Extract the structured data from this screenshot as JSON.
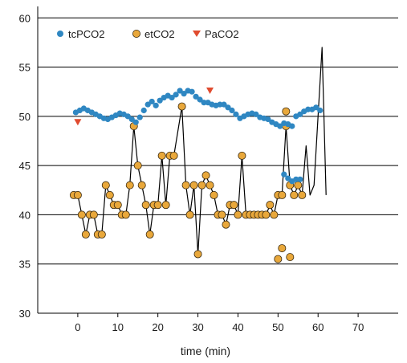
{
  "chart_data": {
    "type": "scatter",
    "xlabel": "time (min)",
    "ylabel": "",
    "xlim": [
      -10,
      80
    ],
    "ylim": [
      30,
      61
    ],
    "x_ticks": [
      0,
      10,
      20,
      30,
      40,
      50,
      60,
      70
    ],
    "y_ticks": [
      30,
      35,
      40,
      45,
      50,
      55,
      60
    ],
    "grid": "horizontal",
    "legend_position": "top-left",
    "colors": {
      "tcPCO2": "#2f87c2",
      "etCO2": "#e9a83b",
      "PaCO2": "#e04b2f",
      "grid": "#000000",
      "line": "#000000"
    },
    "series": [
      {
        "name": "tcPCO2",
        "marker": "circle-filled",
        "points": [
          [
            -0.5,
            50.4
          ],
          [
            0.5,
            50.6
          ],
          [
            1.5,
            50.8
          ],
          [
            2.5,
            50.6
          ],
          [
            3.5,
            50.4
          ],
          [
            4.5,
            50.2
          ],
          [
            5.5,
            50.0
          ],
          [
            6.5,
            49.8
          ],
          [
            7.5,
            49.7
          ],
          [
            8.5,
            49.9
          ],
          [
            9.5,
            50.1
          ],
          [
            10.5,
            50.3
          ],
          [
            11.5,
            50.2
          ],
          [
            12.5,
            50.0
          ],
          [
            13.5,
            49.7
          ],
          [
            14.5,
            49.4
          ],
          [
            15.5,
            49.9
          ],
          [
            16.5,
            50.6
          ],
          [
            17.5,
            51.2
          ],
          [
            18.5,
            51.5
          ],
          [
            19.5,
            51.1
          ],
          [
            20.5,
            51.6
          ],
          [
            21.5,
            51.9
          ],
          [
            22.5,
            52.1
          ],
          [
            23.5,
            51.9
          ],
          [
            24.5,
            52.2
          ],
          [
            25.5,
            52.6
          ],
          [
            26.5,
            52.3
          ],
          [
            27.5,
            52.6
          ],
          [
            28.5,
            52.5
          ],
          [
            29.5,
            52.0
          ],
          [
            30.5,
            51.7
          ],
          [
            31.5,
            51.4
          ],
          [
            32.5,
            51.4
          ],
          [
            33.5,
            51.2
          ],
          [
            34.5,
            51.1
          ],
          [
            35.5,
            51.2
          ],
          [
            36.5,
            51.2
          ],
          [
            37.5,
            50.9
          ],
          [
            38.5,
            50.6
          ],
          [
            39.5,
            50.2
          ],
          [
            40.5,
            49.8
          ],
          [
            41.5,
            50.0
          ],
          [
            42.5,
            50.2
          ],
          [
            43.5,
            50.3
          ],
          [
            44.5,
            50.2
          ],
          [
            45.5,
            49.9
          ],
          [
            46.5,
            49.8
          ],
          [
            47.5,
            49.7
          ],
          [
            48.5,
            49.4
          ],
          [
            49.5,
            49.2
          ],
          [
            50.5,
            49.0
          ],
          [
            51.5,
            49.3
          ],
          [
            52.5,
            49.2
          ],
          [
            53.5,
            49.0
          ],
          [
            54.5,
            50.0
          ],
          [
            55.5,
            50.2
          ],
          [
            56.5,
            50.5
          ],
          [
            57.5,
            50.7
          ],
          [
            58.5,
            50.7
          ],
          [
            59.5,
            50.9
          ],
          [
            60.5,
            50.6
          ],
          [
            51.5,
            44.1
          ],
          [
            52.5,
            43.7
          ],
          [
            53.5,
            43.4
          ],
          [
            54.5,
            43.6
          ],
          [
            55.5,
            43.6
          ]
        ]
      },
      {
        "name": "etCO2",
        "marker": "circle-open",
        "line_points": [
          [
            -1,
            42
          ],
          [
            0,
            42
          ],
          [
            2,
            38
          ],
          [
            3,
            40
          ],
          [
            4,
            40
          ],
          [
            5,
            38
          ],
          [
            6,
            38
          ],
          [
            7,
            43
          ],
          [
            8,
            42
          ],
          [
            9,
            41
          ],
          [
            10,
            41
          ],
          [
            11,
            40
          ],
          [
            12,
            40
          ],
          [
            13,
            43
          ],
          [
            14,
            49
          ],
          [
            15,
            45
          ],
          [
            16,
            43
          ],
          [
            17,
            41
          ],
          [
            18,
            38
          ],
          [
            19,
            41
          ],
          [
            20,
            41
          ],
          [
            21,
            46
          ],
          [
            22,
            41
          ],
          [
            23,
            46
          ],
          [
            24,
            46
          ],
          [
            26,
            51
          ],
          [
            27,
            43
          ],
          [
            28,
            40
          ],
          [
            29,
            43
          ],
          [
            30,
            36
          ],
          [
            31,
            43
          ],
          [
            32,
            44
          ],
          [
            33,
            43
          ],
          [
            34,
            42
          ],
          [
            35,
            40
          ],
          [
            36,
            40
          ],
          [
            37,
            39
          ],
          [
            38,
            41
          ],
          [
            39,
            41
          ],
          [
            40,
            40
          ],
          [
            41,
            46
          ],
          [
            42,
            40
          ],
          [
            43,
            40
          ],
          [
            44,
            40
          ],
          [
            45,
            40
          ],
          [
            46,
            40
          ],
          [
            47,
            40
          ],
          [
            48,
            41
          ],
          [
            49,
            40
          ],
          [
            50,
            42
          ],
          [
            51,
            42
          ],
          [
            52,
            49
          ],
          [
            53,
            43
          ],
          [
            54,
            42
          ],
          [
            55,
            43
          ],
          [
            56,
            42
          ],
          [
            57,
            47
          ],
          [
            58,
            42
          ],
          [
            59,
            43
          ],
          [
            61,
            57
          ],
          [
            62,
            42
          ]
        ],
        "points": [
          [
            -1,
            42
          ],
          [
            0,
            42
          ],
          [
            1,
            40
          ],
          [
            2,
            38
          ],
          [
            3,
            40
          ],
          [
            4,
            40
          ],
          [
            5,
            38
          ],
          [
            6,
            38
          ],
          [
            7,
            43
          ],
          [
            8,
            42
          ],
          [
            9,
            41
          ],
          [
            10,
            41
          ],
          [
            11,
            40
          ],
          [
            12,
            40
          ],
          [
            13,
            43
          ],
          [
            14,
            49
          ],
          [
            15,
            45
          ],
          [
            16,
            43
          ],
          [
            17,
            41
          ],
          [
            18,
            38
          ],
          [
            19,
            41
          ],
          [
            20,
            41
          ],
          [
            21,
            46
          ],
          [
            22,
            41
          ],
          [
            23,
            46
          ],
          [
            24,
            46
          ],
          [
            26,
            51
          ],
          [
            27,
            43
          ],
          [
            28,
            40
          ],
          [
            29,
            43
          ],
          [
            30,
            36
          ],
          [
            31,
            43
          ],
          [
            32,
            44
          ],
          [
            33,
            43
          ],
          [
            34,
            42
          ],
          [
            35,
            40
          ],
          [
            36,
            40
          ],
          [
            37,
            39
          ],
          [
            38,
            41
          ],
          [
            39,
            41
          ],
          [
            40,
            40
          ],
          [
            41,
            46
          ],
          [
            42,
            40
          ],
          [
            43,
            40
          ],
          [
            44,
            40
          ],
          [
            45,
            40
          ],
          [
            46,
            40
          ],
          [
            47,
            40
          ],
          [
            48,
            41
          ],
          [
            49,
            40
          ],
          [
            50,
            42
          ],
          [
            51,
            42
          ],
          [
            52,
            49
          ],
          [
            53,
            43
          ],
          [
            54,
            42
          ],
          [
            55,
            43
          ],
          [
            56,
            42
          ],
          [
            50,
            35.5
          ],
          [
            51,
            36.6
          ],
          [
            52,
            50.5
          ],
          [
            53,
            35.7
          ]
        ]
      },
      {
        "name": "PaCO2",
        "marker": "triangle-down",
        "points": [
          [
            0,
            49.4
          ],
          [
            33,
            52.6
          ]
        ]
      }
    ]
  }
}
